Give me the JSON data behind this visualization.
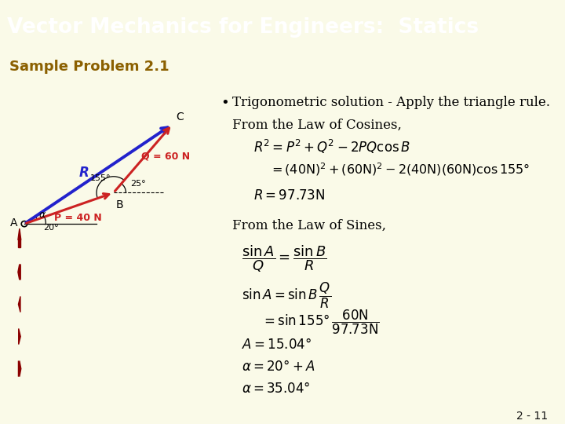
{
  "title": "Vector Mechanics for Engineers:  Statics",
  "subtitle": "Sample Problem 2.1",
  "title_bg": "#8B0000",
  "subtitle_bg": "#F5F0A0",
  "content_bg": "#FAFAE8",
  "title_color": "#FFFFFF",
  "subtitle_color": "#8B6000",
  "bullet_text": "Trigonometric solution - Apply the triangle rule.",
  "from_cosines": "From the Law of Cosines,",
  "eq1a": "$R^2 = P^2 + Q^2 - 2PQ\\cos B$",
  "eq1b": "$= (40\\mathrm{N})^2 + (60\\mathrm{N})^2 - 2(40\\mathrm{N})(60\\mathrm{N})\\cos 155°$",
  "eq1c": "$R = 97.73\\mathrm{N}$",
  "from_sines": "From the Law of Sines,",
  "eq2a": "$\\dfrac{\\sin A}{Q} = \\dfrac{\\sin B}{R}$",
  "eq2b": "$\\sin A = \\sin B\\,\\dfrac{Q}{R}$",
  "eq2c": "$= \\sin 155°\\,\\dfrac{60\\mathrm{N}}{97.73\\mathrm{N}}$",
  "eq2d": "$A = 15.04°$",
  "eq2e": "$\\alpha = 20° + A$",
  "eq2f": "$\\alpha = 35.04°$",
  "page_label": "2 - 11",
  "sidebar_color": "#8B0000",
  "vector_blue": "#2222CC",
  "vector_red": "#CC2222",
  "text_color": "#111111"
}
